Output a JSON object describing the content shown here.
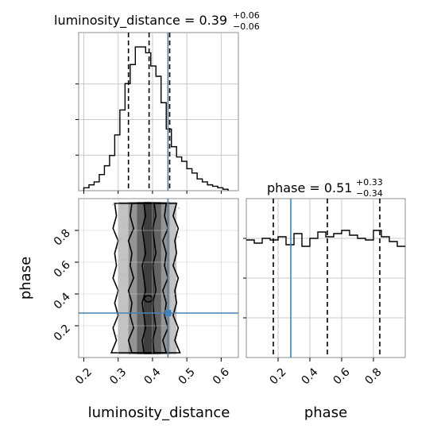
{
  "colors": {
    "truth": "#4682b4",
    "hist": "#000000",
    "grid": "#c8c8c8",
    "frame": "#8c8c8c",
    "scatter": "#9a9a9a"
  },
  "chart_data": [
    {
      "type": "histogram",
      "panel": "luminosity_distance-marginal",
      "title": {
        "main": "luminosity_distance = 0.39",
        "sup": "+0.06",
        "sub": "−0.06"
      },
      "xlim": [
        0.185,
        0.65
      ],
      "bin_edges": [
        0.2,
        0.215,
        0.23,
        0.245,
        0.26,
        0.275,
        0.29,
        0.305,
        0.32,
        0.335,
        0.35,
        0.365,
        0.38,
        0.395,
        0.41,
        0.425,
        0.44,
        0.455,
        0.47,
        0.485,
        0.5,
        0.515,
        0.53,
        0.545,
        0.56,
        0.575,
        0.59,
        0.605,
        0.62
      ],
      "counts": [
        2,
        4,
        6,
        11,
        17,
        24,
        38,
        55,
        73,
        86,
        98,
        98,
        94,
        85,
        78,
        60,
        42,
        30,
        23,
        20,
        15,
        12,
        8,
        6,
        4,
        3,
        2,
        1
      ],
      "quantile_lines": [
        0.33,
        0.39,
        0.45
      ],
      "truth": 0.445
    },
    {
      "type": "hist2d-contour",
      "panel": "luminosity_distance-vs-phase",
      "xlabel": "luminosity_distance",
      "ylabel": "phase",
      "xlim": [
        0.185,
        0.65
      ],
      "ylim": [
        0.0,
        1.0
      ],
      "xticks": [
        "0.2",
        "0.3",
        "0.4",
        "0.5",
        "0.6"
      ],
      "yticks": [
        "0.2",
        "0.4",
        "0.6",
        "0.8"
      ],
      "truth": {
        "x": 0.445,
        "y": 0.28
      },
      "contours": [
        {
          "level": "outer",
          "x_left": [
            0.28,
            0.295,
            0.285,
            0.3,
            0.29,
            0.3,
            0.285,
            0.295,
            0.29,
            0.3,
            0.285,
            0.295,
            0.29
          ],
          "x_right": [
            0.48,
            0.465,
            0.475,
            0.46,
            0.47,
            0.465,
            0.475,
            0.46,
            0.47,
            0.465,
            0.475,
            0.46,
            0.47
          ]
        },
        {
          "level": "middle",
          "x_left": [
            0.34,
            0.33,
            0.345,
            0.335,
            0.34,
            0.33,
            0.345,
            0.335,
            0.34,
            0.33,
            0.345,
            0.335,
            0.34
          ],
          "x_right": [
            0.44,
            0.43,
            0.445,
            0.435,
            0.44,
            0.43,
            0.445,
            0.435,
            0.44,
            0.43,
            0.445,
            0.435,
            0.44
          ]
        },
        {
          "level": "inner",
          "x_left": [
            0.375,
            0.37,
            0.38,
            0.375,
            0.37,
            0.38,
            0.375,
            0.37,
            0.38,
            0.375,
            0.37,
            0.38,
            0.375
          ],
          "x_right": [
            0.405,
            0.4,
            0.41,
            0.405,
            0.4,
            0.41,
            0.405,
            0.4,
            0.41,
            0.405,
            0.4,
            0.41,
            0.405
          ]
        }
      ]
    },
    {
      "type": "histogram",
      "panel": "phase-marginal",
      "title": {
        "main": "phase = 0.51",
        "sup": "+0.33",
        "sub": "−0.34"
      },
      "xlabel": "phase",
      "xlim": [
        0.0,
        1.0
      ],
      "xticks": [
        "0.2",
        "0.4",
        "0.6",
        "0.8"
      ],
      "bin_edges": [
        0.0,
        0.05,
        0.1,
        0.15,
        0.2,
        0.25,
        0.3,
        0.35,
        0.4,
        0.45,
        0.5,
        0.55,
        0.6,
        0.65,
        0.7,
        0.75,
        0.8,
        0.85,
        0.9,
        0.95,
        1.0
      ],
      "counts": [
        74,
        72,
        75,
        74,
        76,
        71,
        78,
        70,
        75,
        79,
        76,
        78,
        80,
        77,
        75,
        74,
        80,
        76,
        73,
        70
      ],
      "quantile_lines": [
        0.17,
        0.51,
        0.84
      ],
      "truth": 0.28
    }
  ]
}
